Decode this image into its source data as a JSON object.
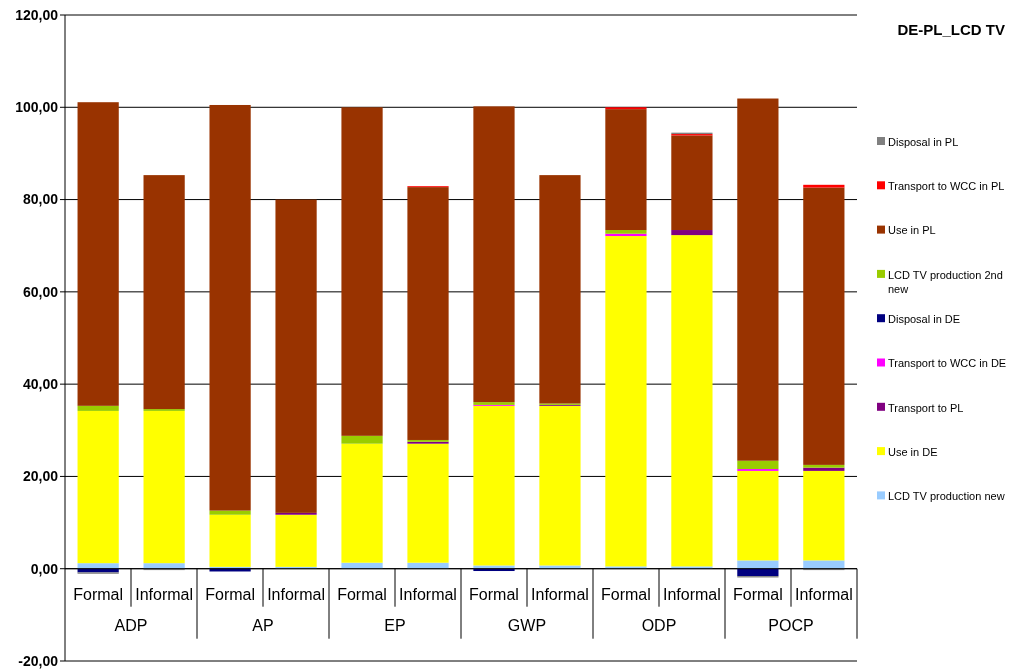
{
  "chart_data": {
    "type": "bar",
    "title": "DE-PL_LCD TV",
    "stacked": true,
    "categories": [
      "Formal",
      "Informal",
      "Formal",
      "Informal",
      "Formal",
      "Informal",
      "Formal",
      "Informal",
      "Formal",
      "Informal",
      "Formal",
      "Informal"
    ],
    "annotations": [
      "ADP",
      "AP",
      "EP",
      "GWP",
      "ODP",
      "POCP"
    ],
    "series": [
      {
        "name": "LCD TV production new",
        "color": "#99ccff",
        "values": [
          1.2,
          1.2,
          0.4,
          0.4,
          1.3,
          1.3,
          0.7,
          0.7,
          0.5,
          0.5,
          1.8,
          1.8
        ]
      },
      {
        "name": "Use in DE",
        "color": "#ffff00",
        "values": [
          33.0,
          33.0,
          11.3,
          11.3,
          25.8,
          25.8,
          34.6,
          34.6,
          71.6,
          71.8,
          19.4,
          19.4
        ]
      },
      {
        "name": "Transport to PL",
        "color": "#800080",
        "values": [
          null,
          null,
          null,
          0.4,
          null,
          0.4,
          null,
          0.2,
          null,
          1.1,
          null,
          0.7
        ]
      },
      {
        "name": "Transport to WCC in DE",
        "color": "#ff00ff",
        "values": [
          null,
          null,
          null,
          null,
          null,
          null,
          0.2,
          null,
          0.5,
          null,
          0.4,
          null
        ]
      },
      {
        "name": "Disposal in DE",
        "color": "#000080",
        "values": [
          -0.8,
          null,
          -0.6,
          null,
          null,
          null,
          -0.5,
          null,
          null,
          null,
          -1.6,
          null
        ]
      },
      {
        "name": "LCD TV production 2nd new",
        "color": "#99cc00",
        "values": [
          1.1,
          0.4,
          0.9,
          null,
          1.7,
          0.4,
          0.6,
          0.3,
          0.8,
          null,
          1.8,
          0.6
        ]
      },
      {
        "name": "Use in PL",
        "color": "#993300",
        "values": [
          65.8,
          50.7,
          87.9,
          67.9,
          71.2,
          54.8,
          64.1,
          49.5,
          26.2,
          20.5,
          78.5,
          60.1
        ]
      },
      {
        "name": "Transport to WCC in PL",
        "color": "#ff0000",
        "values": [
          null,
          null,
          null,
          null,
          null,
          0.2,
          null,
          null,
          0.4,
          0.3,
          null,
          0.6
        ]
      },
      {
        "name": "Disposal in PL",
        "color": "#808080",
        "values": [
          -0.3,
          -0.3,
          null,
          null,
          null,
          null,
          null,
          null,
          null,
          0.3,
          -0.3,
          -0.3
        ]
      }
    ],
    "ylim": [
      -20,
      120
    ],
    "yticks": [
      {
        "value": -20,
        "label": "-20,00"
      },
      {
        "value": 0,
        "label": "0,00"
      },
      {
        "value": 20,
        "label": "20,00"
      },
      {
        "value": 40,
        "label": "40,00"
      },
      {
        "value": 60,
        "label": "60,00"
      },
      {
        "value": 80,
        "label": "80,00"
      },
      {
        "value": 100,
        "label": "100,00"
      },
      {
        "value": 120,
        "label": "120,00"
      }
    ],
    "grid": "y",
    "legend": "right"
  }
}
